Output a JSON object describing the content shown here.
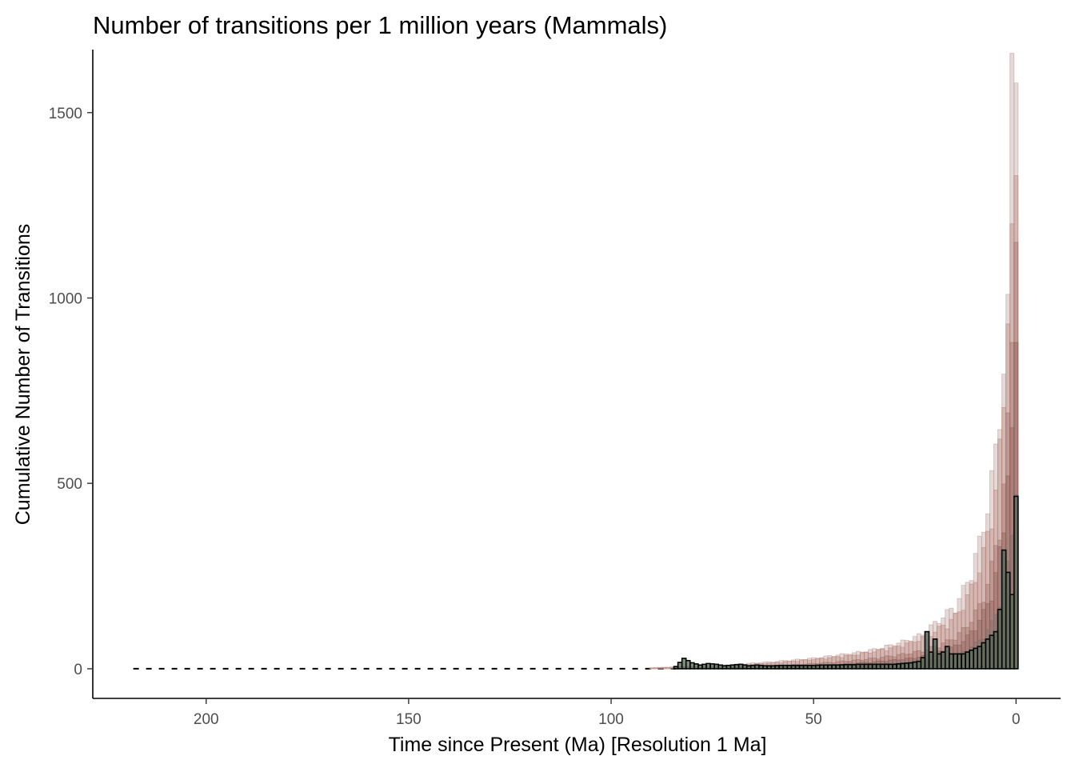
{
  "chart_data": {
    "type": "bar",
    "title": "Number of transitions per 1 million years (Mammals)",
    "xlabel": "Time since Present (Ma) [Resolution 1 Ma]",
    "ylabel": "Cumulative Number of Transitions",
    "x_reversed": true,
    "xlim": [
      228,
      -11
    ],
    "ylim": [
      -80,
      1670
    ],
    "xticks": [
      200,
      150,
      100,
      50,
      0
    ],
    "yticks": [
      0,
      500,
      1000,
      1500
    ],
    "grid": false,
    "legend": "none",
    "bin_width_ma": 1,
    "colors": {
      "series_fills": [
        "#b99a97",
        "#b98076",
        "#9c6a63",
        "#8a5a52",
        "#7a6a66"
      ],
      "outline_series_stroke": "#000000",
      "outline_series_fill": "#556b55"
    },
    "series": [
      {
        "style": "translucent",
        "fill": "#b99a97",
        "points": [
          [
            0,
            1580
          ],
          [
            1,
            1660
          ],
          [
            2,
            1010
          ],
          [
            3,
            860
          ],
          [
            4,
            750
          ],
          [
            5,
            620
          ],
          [
            6,
            540
          ],
          [
            7,
            470
          ],
          [
            8,
            410
          ],
          [
            9,
            360
          ],
          [
            10,
            320
          ],
          [
            11,
            280
          ],
          [
            12,
            250
          ],
          [
            13,
            225
          ],
          [
            14,
            200
          ],
          [
            15,
            180
          ],
          [
            17,
            160
          ],
          [
            19,
            140
          ],
          [
            21,
            120
          ],
          [
            23,
            100
          ],
          [
            26,
            85
          ],
          [
            30,
            70
          ],
          [
            35,
            55
          ],
          [
            40,
            45
          ],
          [
            45,
            38
          ],
          [
            50,
            30
          ],
          [
            55,
            25
          ],
          [
            60,
            20
          ],
          [
            65,
            16
          ],
          [
            70,
            12
          ],
          [
            75,
            9
          ],
          [
            80,
            7
          ],
          [
            85,
            5
          ],
          [
            90,
            3
          ]
        ]
      },
      {
        "style": "translucent",
        "fill": "#b98076",
        "points": [
          [
            0,
            1330
          ],
          [
            1,
            1200
          ],
          [
            2,
            930
          ],
          [
            3,
            740
          ],
          [
            4,
            620
          ],
          [
            5,
            520
          ],
          [
            6,
            440
          ],
          [
            7,
            380
          ],
          [
            8,
            330
          ],
          [
            9,
            290
          ],
          [
            10,
            260
          ],
          [
            11,
            230
          ],
          [
            12,
            205
          ],
          [
            13,
            185
          ],
          [
            14,
            165
          ],
          [
            15,
            150
          ],
          [
            17,
            130
          ],
          [
            19,
            115
          ],
          [
            21,
            100
          ],
          [
            23,
            88
          ],
          [
            26,
            75
          ],
          [
            30,
            62
          ],
          [
            35,
            50
          ],
          [
            40,
            40
          ],
          [
            45,
            33
          ],
          [
            50,
            27
          ],
          [
            55,
            22
          ],
          [
            60,
            17
          ],
          [
            65,
            13
          ],
          [
            70,
            10
          ],
          [
            75,
            8
          ],
          [
            80,
            6
          ],
          [
            85,
            4
          ],
          [
            90,
            2
          ]
        ]
      },
      {
        "style": "translucent",
        "fill": "#9c6a63",
        "points": [
          [
            0,
            1150
          ],
          [
            1,
            880
          ],
          [
            2,
            690
          ],
          [
            3,
            520
          ],
          [
            4,
            420
          ],
          [
            5,
            350
          ],
          [
            6,
            290
          ],
          [
            7,
            245
          ],
          [
            8,
            210
          ],
          [
            9,
            180
          ],
          [
            10,
            160
          ],
          [
            11,
            140
          ],
          [
            12,
            125
          ],
          [
            13,
            112
          ],
          [
            14,
            100
          ],
          [
            15,
            90
          ],
          [
            17,
            78
          ],
          [
            19,
            68
          ],
          [
            21,
            60
          ],
          [
            23,
            52
          ],
          [
            26,
            45
          ],
          [
            30,
            38
          ],
          [
            35,
            30
          ],
          [
            40,
            24
          ],
          [
            45,
            19
          ],
          [
            50,
            15
          ],
          [
            55,
            12
          ],
          [
            60,
            9
          ],
          [
            65,
            7
          ],
          [
            70,
            5
          ],
          [
            75,
            4
          ],
          [
            80,
            3
          ]
        ]
      },
      {
        "style": "translucent",
        "fill": "#8a5a52",
        "points": [
          [
            0,
            880
          ],
          [
            1,
            650
          ],
          [
            2,
            520
          ],
          [
            3,
            400
          ],
          [
            4,
            330
          ],
          [
            5,
            270
          ],
          [
            6,
            220
          ],
          [
            7,
            185
          ],
          [
            8,
            160
          ],
          [
            9,
            140
          ],
          [
            10,
            120
          ],
          [
            11,
            105
          ],
          [
            12,
            92
          ],
          [
            13,
            82
          ],
          [
            14,
            72
          ],
          [
            15,
            65
          ],
          [
            17,
            55
          ],
          [
            19,
            48
          ],
          [
            21,
            42
          ],
          [
            23,
            36
          ],
          [
            26,
            30
          ],
          [
            30,
            25
          ],
          [
            35,
            20
          ],
          [
            40,
            16
          ],
          [
            45,
            12
          ],
          [
            50,
            10
          ],
          [
            55,
            8
          ],
          [
            60,
            6
          ],
          [
            65,
            4
          ],
          [
            70,
            3
          ]
        ]
      },
      {
        "style": "translucent",
        "fill": "#7a6a66",
        "points": [
          [
            0,
            470
          ],
          [
            1,
            360
          ],
          [
            2,
            290
          ],
          [
            3,
            230
          ],
          [
            4,
            190
          ],
          [
            5,
            160
          ],
          [
            6,
            130
          ],
          [
            7,
            110
          ],
          [
            8,
            95
          ],
          [
            9,
            82
          ],
          [
            10,
            72
          ],
          [
            11,
            63
          ],
          [
            12,
            55
          ],
          [
            13,
            48
          ],
          [
            14,
            42
          ],
          [
            15,
            37
          ],
          [
            17,
            32
          ],
          [
            19,
            28
          ],
          [
            21,
            24
          ],
          [
            23,
            21
          ],
          [
            26,
            18
          ],
          [
            30,
            15
          ],
          [
            35,
            12
          ],
          [
            40,
            10
          ],
          [
            45,
            8
          ],
          [
            50,
            6
          ],
          [
            55,
            5
          ],
          [
            60,
            4
          ],
          [
            65,
            3
          ],
          [
            70,
            2
          ]
        ]
      },
      {
        "style": "outlined",
        "fill": "#556b55",
        "points": [
          [
            0,
            465
          ],
          [
            1,
            200
          ],
          [
            2,
            260
          ],
          [
            3,
            320
          ],
          [
            4,
            160
          ],
          [
            5,
            100
          ],
          [
            6,
            90
          ],
          [
            7,
            80
          ],
          [
            8,
            70
          ],
          [
            9,
            60
          ],
          [
            10,
            55
          ],
          [
            11,
            50
          ],
          [
            12,
            45
          ],
          [
            13,
            40
          ],
          [
            14,
            40
          ],
          [
            15,
            40
          ],
          [
            16,
            40
          ],
          [
            17,
            60
          ],
          [
            18,
            45
          ],
          [
            19,
            40
          ],
          [
            20,
            80
          ],
          [
            21,
            45
          ],
          [
            22,
            100
          ],
          [
            23,
            30
          ],
          [
            24,
            20
          ],
          [
            25,
            18
          ],
          [
            26,
            16
          ],
          [
            27,
            15
          ],
          [
            28,
            14
          ],
          [
            29,
            13
          ],
          [
            30,
            12
          ],
          [
            31,
            12
          ],
          [
            32,
            12
          ],
          [
            33,
            12
          ],
          [
            34,
            12
          ],
          [
            35,
            12
          ],
          [
            36,
            12
          ],
          [
            37,
            12
          ],
          [
            38,
            12
          ],
          [
            39,
            12
          ],
          [
            40,
            11
          ],
          [
            42,
            11
          ],
          [
            44,
            10
          ],
          [
            46,
            10
          ],
          [
            48,
            10
          ],
          [
            50,
            9
          ],
          [
            52,
            9
          ],
          [
            54,
            9
          ],
          [
            56,
            9
          ],
          [
            58,
            9
          ],
          [
            60,
            8
          ],
          [
            62,
            8
          ],
          [
            64,
            10
          ],
          [
            66,
            8
          ],
          [
            68,
            12
          ],
          [
            70,
            10
          ],
          [
            72,
            8
          ],
          [
            74,
            12
          ],
          [
            76,
            14
          ],
          [
            78,
            10
          ],
          [
            80,
            16
          ],
          [
            82,
            28
          ],
          [
            84,
            6
          ]
        ]
      }
    ],
    "dashed_baseline": {
      "from": 218,
      "to": 84,
      "value": 0
    }
  }
}
